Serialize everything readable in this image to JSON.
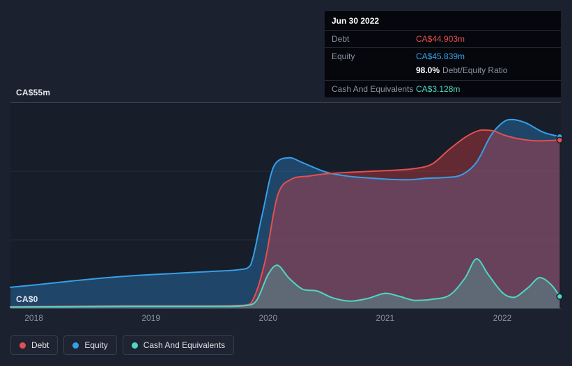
{
  "colors": {
    "background": "#1b212e",
    "debt": "#e3504f",
    "equity": "#35a0e8",
    "cash": "#4fd6c4"
  },
  "tooltip": {
    "date": "Jun 30 2022",
    "debt_label": "Debt",
    "debt_value": "CA$44.903m",
    "equity_label": "Equity",
    "equity_value": "CA$45.839m",
    "ratio_value": "98.0%",
    "ratio_label": "Debt/Equity Ratio",
    "cash_label": "Cash And Equivalents",
    "cash_value": "CA$3.128m"
  },
  "legend": {
    "items": [
      {
        "label": "Debt",
        "color": "#e3504f"
      },
      {
        "label": "Equity",
        "color": "#35a0e8"
      },
      {
        "label": "Cash And Equivalents",
        "color": "#4fd6c4"
      }
    ]
  },
  "chart_data": {
    "type": "area",
    "title": "Debt, Equity and Cash history (CA$ millions)",
    "y_unit": "CA$m",
    "x_domain": [
      2017.8,
      2022.5
    ],
    "y_domain": [
      0,
      55
    ],
    "x_ticks": [
      2018,
      2019,
      2020,
      2021,
      2022
    ],
    "y_axis": {
      "top_label": "CA$55m",
      "bottom_label": "CA$0"
    },
    "gridlines_y": [
      55,
      36.67,
      18.33,
      0
    ],
    "grid_color": "#262e3c",
    "axis_line_color": "#3a4252",
    "plot_bg": "#171d29",
    "legend_position": "bottom-left",
    "series": [
      {
        "name": "Equity",
        "color": "#35a0e8",
        "fill": "rgba(42,120,185,0.45)",
        "points": [
          [
            2017.8,
            5.6
          ],
          [
            2018.0,
            6.2
          ],
          [
            2018.3,
            7.2
          ],
          [
            2018.6,
            8.1
          ],
          [
            2018.9,
            8.8
          ],
          [
            2019.2,
            9.3
          ],
          [
            2019.5,
            9.8
          ],
          [
            2019.75,
            10.3
          ],
          [
            2019.85,
            11.5
          ],
          [
            2019.95,
            25
          ],
          [
            2020.05,
            38
          ],
          [
            2020.18,
            40.2
          ],
          [
            2020.3,
            38.8
          ],
          [
            2020.5,
            36.3
          ],
          [
            2020.7,
            35.2
          ],
          [
            2020.9,
            34.7
          ],
          [
            2021.05,
            34.4
          ],
          [
            2021.2,
            34.3
          ],
          [
            2021.35,
            34.7
          ],
          [
            2021.5,
            34.9
          ],
          [
            2021.65,
            35.6
          ],
          [
            2021.78,
            39
          ],
          [
            2021.9,
            46
          ],
          [
            2022.0,
            49.5
          ],
          [
            2022.08,
            50.4
          ],
          [
            2022.2,
            49.5
          ],
          [
            2022.35,
            47
          ],
          [
            2022.49,
            45.839
          ]
        ]
      },
      {
        "name": "Debt",
        "color": "#e3504f",
        "fill": "rgba(205,62,70,0.42)",
        "points": [
          [
            2017.8,
            0.4
          ],
          [
            2018.3,
            0.5
          ],
          [
            2018.8,
            0.6
          ],
          [
            2019.3,
            0.6
          ],
          [
            2019.7,
            0.7
          ],
          [
            2019.85,
            1.2
          ],
          [
            2019.97,
            12
          ],
          [
            2020.08,
            30
          ],
          [
            2020.2,
            34.5
          ],
          [
            2020.35,
            35.3
          ],
          [
            2020.5,
            35.9
          ],
          [
            2020.7,
            36.3
          ],
          [
            2020.9,
            36.6
          ],
          [
            2021.1,
            36.9
          ],
          [
            2021.25,
            37.3
          ],
          [
            2021.4,
            38.5
          ],
          [
            2021.55,
            42.5
          ],
          [
            2021.7,
            46
          ],
          [
            2021.82,
            47.6
          ],
          [
            2021.92,
            47.4
          ],
          [
            2022.02,
            46.2
          ],
          [
            2022.15,
            45.2
          ],
          [
            2022.3,
            44.7
          ],
          [
            2022.49,
            44.903
          ]
        ]
      },
      {
        "name": "Cash And Equivalents",
        "color": "#4fd6c4",
        "fill": "rgba(72,205,185,0.28)",
        "points": [
          [
            2017.8,
            0.3
          ],
          [
            2018.3,
            0.4
          ],
          [
            2018.8,
            0.5
          ],
          [
            2019.2,
            0.5
          ],
          [
            2019.6,
            0.5
          ],
          [
            2019.8,
            0.7
          ],
          [
            2019.9,
            2
          ],
          [
            2020.0,
            9
          ],
          [
            2020.08,
            11.5
          ],
          [
            2020.18,
            8
          ],
          [
            2020.3,
            5
          ],
          [
            2020.42,
            4.6
          ],
          [
            2020.55,
            2.8
          ],
          [
            2020.7,
            1.9
          ],
          [
            2020.85,
            2.6
          ],
          [
            2021.0,
            4.0
          ],
          [
            2021.12,
            3.2
          ],
          [
            2021.25,
            2.1
          ],
          [
            2021.4,
            2.4
          ],
          [
            2021.55,
            3.5
          ],
          [
            2021.68,
            8
          ],
          [
            2021.78,
            13.2
          ],
          [
            2021.88,
            9
          ],
          [
            2022.0,
            4.2
          ],
          [
            2022.1,
            2.9
          ],
          [
            2022.22,
            5.5
          ],
          [
            2022.32,
            8.2
          ],
          [
            2022.42,
            6.2
          ],
          [
            2022.49,
            3.128
          ]
        ]
      }
    ]
  }
}
